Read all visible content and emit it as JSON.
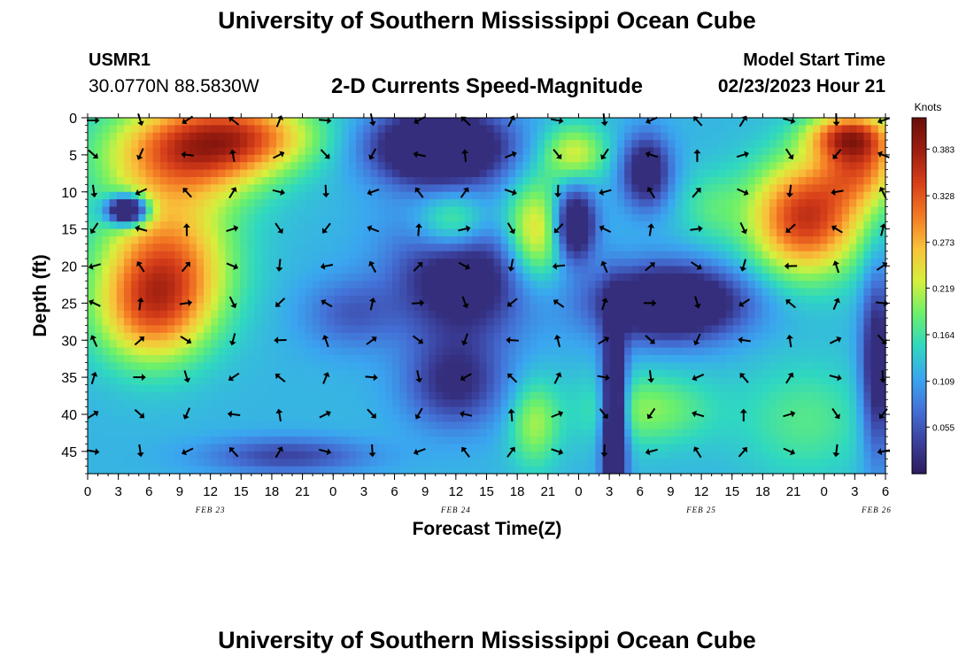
{
  "header": {
    "title": "University of Southern Mississippi Ocean Cube",
    "station": "USMR1",
    "coordinates": "30.0770N  88.5830W",
    "subtitle": "2-D Currents Speed-Magnitude",
    "model_start_label": "Model Start Time",
    "model_start_time": "02/23/2023 Hour 21"
  },
  "footer": {
    "title": "University of Southern Mississippi Ocean Cube"
  },
  "chart_data": {
    "type": "heatmap",
    "title": "2-D Currents Speed-Magnitude",
    "xlabel": "Forecast Time(Z)",
    "ylabel": "Depth (ft)",
    "x_tick_labels": [
      "0",
      "3",
      "6",
      "9",
      "12",
      "15",
      "18",
      "21",
      "0",
      "3",
      "6",
      "9",
      "12",
      "15",
      "18",
      "21",
      "0",
      "3",
      "6",
      "9",
      "12",
      "15",
      "18",
      "21",
      "0",
      "3",
      "6"
    ],
    "date_labels": [
      "FEB 23",
      "FEB 24",
      "FEB 25",
      "FEB 26"
    ],
    "y_tick_labels": [
      "0",
      "5",
      "10",
      "15",
      "20",
      "25",
      "30",
      "35",
      "40",
      "45"
    ],
    "ylim": [
      48,
      0
    ],
    "colorbar": {
      "unit": "Knots",
      "tick_labels": [
        "0.383",
        "0.328",
        "0.273",
        "0.219",
        "0.164",
        "0.109",
        "0.055"
      ],
      "range": [
        0.0,
        0.42
      ],
      "colors": [
        "#2d1a5a",
        "#3a3f9a",
        "#4470d6",
        "#3aa6f0",
        "#2fd8c0",
        "#6cf06a",
        "#d6f03c",
        "#f8c23a",
        "#f47a24",
        "#d8401a",
        "#a01e10",
        "#6a0f0a"
      ]
    },
    "vector_arrows": "present on grid (direction glyphs)"
  }
}
